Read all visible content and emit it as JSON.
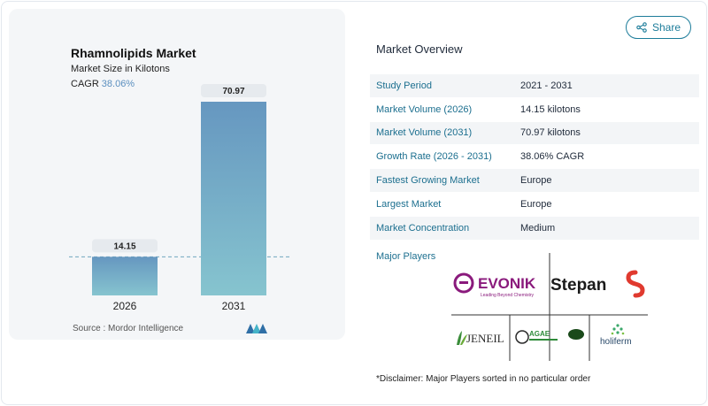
{
  "chart_data": {
    "type": "bar",
    "title": "Rhamnolipids Market",
    "subtitle": "Market Size in Kilotons",
    "cagr_label": "CAGR",
    "cagr_value": "38.06%",
    "categories": [
      "2026",
      "2031"
    ],
    "values": [
      14.15,
      70.97
    ],
    "value_labels": [
      "14.15",
      "70.97"
    ],
    "colors": {
      "bar_top": "#6697c0",
      "bar_bottom": "#86c4cf",
      "label_bg": "#e6eaee",
      "dash": "#6fa7bf"
    }
  },
  "source": "Source :  Mordor Intelligence",
  "share_label": "Share",
  "overview": {
    "title": "Market Overview",
    "rows": [
      {
        "label": "Study Period",
        "value": "2021 - 2031"
      },
      {
        "label": "Market Volume (2026)",
        "value": "14.15 kilotons"
      },
      {
        "label": "Market Volume (2031)",
        "value": "70.97 kilotons"
      },
      {
        "label": "Growth Rate (2026 - 2031)",
        "value": "38.06% CAGR"
      },
      {
        "label": "Fastest Growing Market",
        "value": "Europe"
      },
      {
        "label": "Largest Market",
        "value": "Europe"
      },
      {
        "label": "Market Concentration",
        "value": "Medium"
      }
    ]
  },
  "major_players": {
    "title": "Major Players",
    "logos": [
      {
        "name": "EVONIK",
        "tagline": "Leading Beyond Chemistry",
        "color": "#8a1a7c"
      },
      {
        "name": "Stepan",
        "color": "#1a1a1a",
        "accent": "#e03a2f"
      },
      {
        "name": "JENEIL",
        "color": "#2a2a2a"
      },
      {
        "name": "AGAE",
        "color": "#2e8b3a"
      },
      {
        "name": "holiferm",
        "color": "#2a4a6a"
      }
    ]
  },
  "disclaimer": "*Disclaimer: Major Players sorted in no particular order"
}
